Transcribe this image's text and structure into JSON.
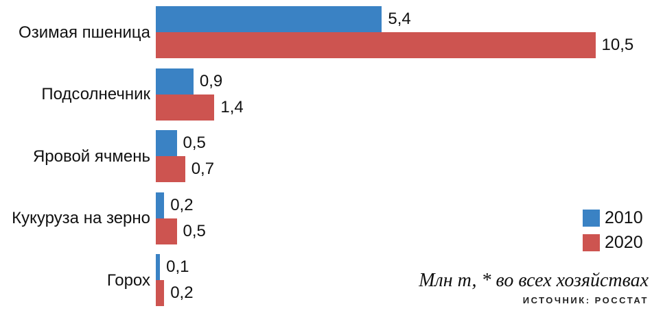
{
  "chart_data": {
    "type": "bar",
    "orientation": "horizontal",
    "categories": [
      "Озимая пшеница",
      "Подсолнечник",
      "Яровой ячмень",
      "Кукуруза на зерно",
      "Горох"
    ],
    "series": [
      {
        "name": "2010",
        "color": "#3A82C4",
        "values": [
          5.4,
          0.9,
          0.5,
          0.2,
          0.1
        ]
      },
      {
        "name": "2020",
        "color": "#CD5450",
        "values": [
          10.5,
          1.4,
          0.7,
          0.5,
          0.2
        ]
      }
    ],
    "xlim": [
      0,
      10.5
    ],
    "grid": false,
    "legend_position": "right-bottom",
    "value_label_decimal_separator": ","
  },
  "legend": {
    "items": [
      {
        "label": "2010",
        "color": "#3A82C4"
      },
      {
        "label": "2020",
        "color": "#CD5450"
      }
    ]
  },
  "footer": {
    "units_note": "Млн т, * во всех хозяйствах",
    "source": "ИСТОЧНИК: РОССТАТ"
  }
}
